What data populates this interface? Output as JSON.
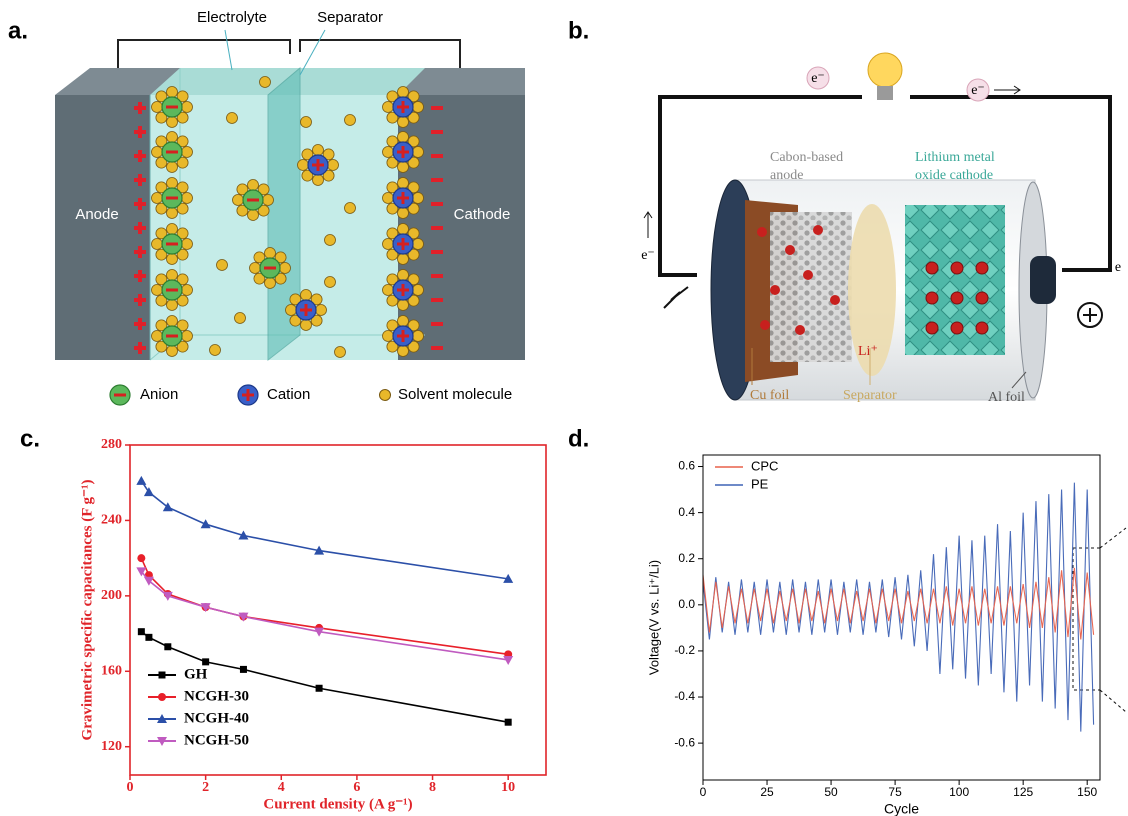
{
  "panel_labels": [
    "a.",
    "b.",
    "c.",
    "d."
  ],
  "diagram_a": {
    "electrolyte": "Electrolyte",
    "separator": "Separator",
    "anode": "Anode",
    "cathode": "Cathode",
    "legend": [
      "Anion",
      "Cation",
      "Solvent molecule"
    ]
  },
  "diagram_b": {
    "electron_top_left": "e⁻",
    "electron_top_right": "e⁻",
    "electron_left": "e⁻",
    "electron_right": "e",
    "anode": [
      "Cabon-based",
      "anode"
    ],
    "cathode": [
      "Lithium metal",
      "oxide cathode"
    ],
    "ion": "Li⁺",
    "cu_foil": "Cu foil",
    "separator": "Separator",
    "al_foil": "Al foil"
  },
  "chart_data": [
    {
      "type": "line",
      "xlabel": "Current density (A g⁻¹)",
      "ylabel": "Gravimetric specific capacitances (F g⁻¹)",
      "x": [
        0.3,
        0.5,
        1,
        2,
        3,
        5,
        10
      ],
      "series": [
        {
          "name": "GH",
          "color": "#000000",
          "marker": "square",
          "values": [
            181,
            178,
            173,
            165,
            161,
            151,
            133
          ]
        },
        {
          "name": "NCGH-30",
          "color": "#e8202a",
          "marker": "circle",
          "values": [
            220,
            211,
            201,
            194,
            189,
            183,
            169
          ]
        },
        {
          "name": "NCGH-40",
          "color": "#2b4fa8",
          "marker": "triangle-up",
          "values": [
            261,
            255,
            247,
            238,
            232,
            224,
            209
          ]
        },
        {
          "name": "NCGH-50",
          "color": "#c05bc0",
          "marker": "triangle-down",
          "values": [
            213,
            208,
            200,
            194,
            189,
            181,
            166
          ]
        }
      ],
      "xlim": [
        0,
        11
      ],
      "ylim": [
        105,
        280
      ],
      "xticks": [
        0,
        2,
        4,
        6,
        8,
        10
      ],
      "yticks": [
        120,
        160,
        200,
        240,
        280
      ],
      "legend": "lower left",
      "axis_color": "#e0242a"
    },
    {
      "type": "line",
      "xlabel": "Cycle",
      "ylabel": "Voltage(V vs. Li⁺/Li)",
      "x": [
        0,
        2.5,
        5,
        7.5,
        10,
        12.5,
        15,
        17.5,
        20,
        22.5,
        25,
        27.5,
        30,
        32.5,
        35,
        37.5,
        40,
        42.5,
        45,
        47.5,
        50,
        52.5,
        55,
        57.5,
        60,
        62.5,
        65,
        67.5,
        70,
        72.5,
        75,
        77.5,
        80,
        82.5,
        85,
        87.5,
        90,
        92.5,
        95,
        97.5,
        100,
        102.5,
        105,
        107.5,
        110,
        112.5,
        115,
        117.5,
        120,
        122.5,
        125,
        127.5,
        130,
        132.5,
        135,
        137.5,
        140,
        142.5,
        145,
        147.5,
        150,
        152.5
      ],
      "series": [
        {
          "name": "CPC",
          "color": "#e8604a",
          "values": [
            0.13,
            -0.12,
            0.1,
            -0.1,
            0.08,
            -0.08,
            0.07,
            -0.08,
            0.07,
            -0.07,
            0.07,
            -0.08,
            0.06,
            -0.07,
            0.07,
            -0.08,
            0.07,
            -0.07,
            0.06,
            -0.08,
            0.07,
            -0.07,
            0.07,
            -0.08,
            0.06,
            -0.07,
            0.07,
            -0.08,
            0.07,
            -0.07,
            0.07,
            -0.08,
            0.06,
            -0.07,
            0.07,
            -0.08,
            0.07,
            -0.08,
            0.08,
            -0.09,
            0.07,
            -0.08,
            0.08,
            -0.09,
            0.07,
            -0.08,
            0.08,
            -0.09,
            0.08,
            -0.08,
            0.09,
            -0.1,
            0.1,
            -0.1,
            0.12,
            -0.12,
            0.15,
            -0.14,
            0.16,
            -0.15,
            0.14,
            -0.13
          ]
        },
        {
          "name": "PE",
          "color": "#3f63b5",
          "values": [
            0.1,
            -0.15,
            0.12,
            -0.12,
            0.1,
            -0.13,
            0.11,
            -0.12,
            0.1,
            -0.13,
            0.11,
            -0.12,
            0.1,
            -0.13,
            0.11,
            -0.12,
            0.1,
            -0.13,
            0.11,
            -0.12,
            0.11,
            -0.13,
            0.1,
            -0.12,
            0.11,
            -0.13,
            0.1,
            -0.12,
            0.11,
            -0.14,
            0.12,
            -0.15,
            0.13,
            -0.18,
            0.15,
            -0.2,
            0.22,
            -0.3,
            0.25,
            -0.28,
            0.3,
            -0.32,
            0.28,
            -0.35,
            0.3,
            -0.3,
            0.35,
            -0.38,
            0.32,
            -0.42,
            0.4,
            -0.35,
            0.45,
            -0.42,
            0.48,
            -0.45,
            0.5,
            -0.5,
            0.53,
            -0.55,
            0.5,
            -0.52
          ]
        }
      ],
      "xlim": [
        0,
        155
      ],
      "ylim": [
        -0.76,
        0.65
      ],
      "xticks": [
        0,
        25,
        50,
        75,
        100,
        125,
        150
      ],
      "yticks": [
        -0.6,
        -0.4,
        -0.2,
        {
          "value": 0,
          "label": "0.0"
        },
        0.2,
        0.4,
        0.6
      ],
      "legend": "upper left",
      "axis_color": "#000000"
    }
  ]
}
